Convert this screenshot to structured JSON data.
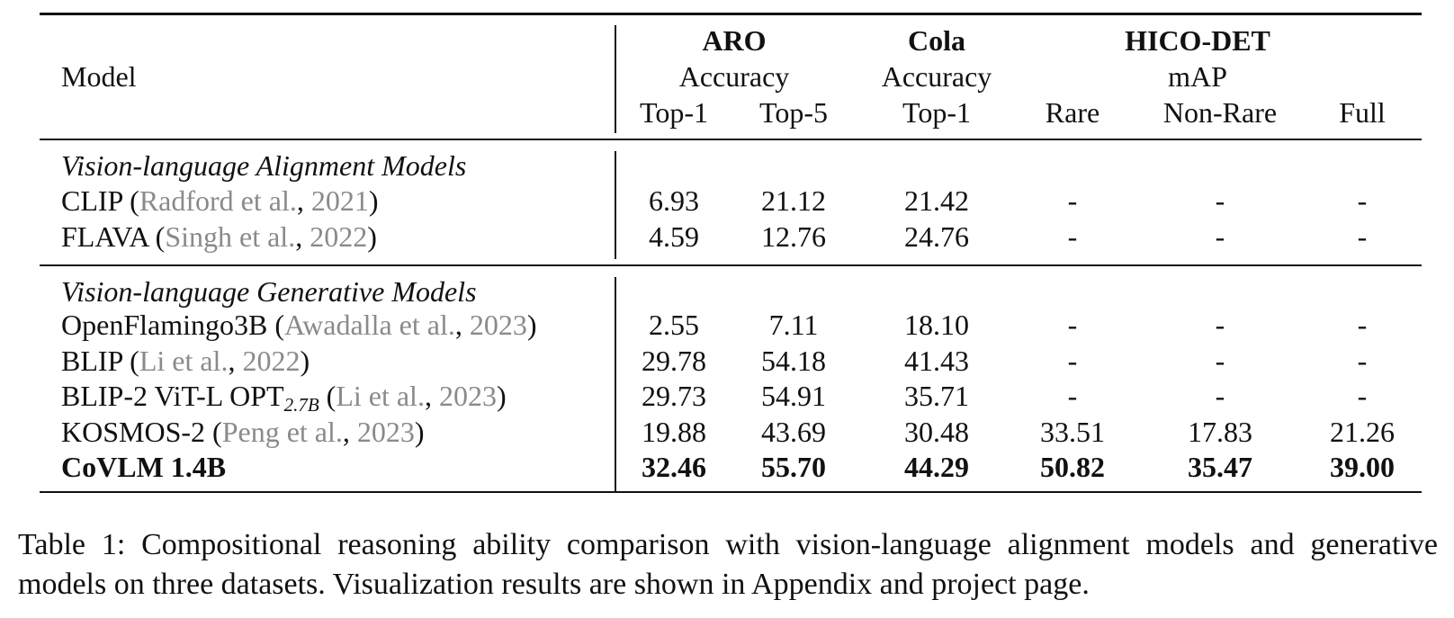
{
  "header": {
    "model_label": "Model",
    "aro": {
      "name": "ARO",
      "metric": "Accuracy",
      "cols": [
        "Top-1",
        "Top-5"
      ]
    },
    "cola": {
      "name": "Cola",
      "metric": "Accuracy",
      "cols": [
        "Top-1"
      ]
    },
    "hico": {
      "name": "HICO-DET",
      "metric": "mAP",
      "cols": [
        "Rare",
        "Non-Rare",
        "Full"
      ]
    }
  },
  "sections": [
    {
      "title": "Vision-language Alignment Models",
      "rows": [
        {
          "model": "CLIP",
          "cite_open": " (",
          "cite_author": "Radford et al.",
          "cite_sep": ", ",
          "cite_year": "2021",
          "cite_close": ")",
          "values": [
            "6.93",
            "21.12",
            "21.42",
            "-",
            "-",
            "-"
          ]
        },
        {
          "model": "FLAVA",
          "cite_open": " (",
          "cite_author": "Singh et al.",
          "cite_sep": ", ",
          "cite_year": "2022",
          "cite_close": ")",
          "values": [
            "4.59",
            "12.76",
            "24.76",
            "-",
            "-",
            "-"
          ]
        }
      ]
    },
    {
      "title": "Vision-language Generative Models",
      "rows": [
        {
          "model": "OpenFlamingo3B",
          "cite_open": " (",
          "cite_author": "Awadalla et al.",
          "cite_sep": ", ",
          "cite_year": "2023",
          "cite_close": ")",
          "values": [
            "2.55",
            "7.11",
            "18.10",
            "-",
            "-",
            "-"
          ]
        },
        {
          "model": "BLIP",
          "cite_open": " (",
          "cite_author": "Li et al.",
          "cite_sep": ", ",
          "cite_year": "2022",
          "cite_close": ")",
          "values": [
            "29.78",
            "54.18",
            "41.43",
            "-",
            "-",
            "-"
          ]
        },
        {
          "model": "BLIP-2 ViT-L OPT",
          "model_sub": "2.7B",
          "cite_open": " (",
          "cite_author": "Li et al.",
          "cite_sep": ", ",
          "cite_year": "2023",
          "cite_close": ")",
          "values": [
            "29.73",
            "54.91",
            "35.71",
            "-",
            "-",
            "-"
          ]
        },
        {
          "model": "KOSMOS-2",
          "cite_open": " (",
          "cite_author": "Peng et al.",
          "cite_sep": ", ",
          "cite_year": "2023",
          "cite_close": ")",
          "values": [
            "19.88",
            "43.69",
            "30.48",
            "33.51",
            "17.83",
            "21.26"
          ]
        },
        {
          "model": "CoVLM 1.4B",
          "values": [
            "32.46",
            "55.70",
            "44.29",
            "50.82",
            "35.47",
            "39.00"
          ]
        }
      ]
    }
  ],
  "caption": "Table 1: Compositional reasoning ability comparison with vision-language alignment models and generative models on three datasets. Visualization results are shown in Appendix and project page."
}
